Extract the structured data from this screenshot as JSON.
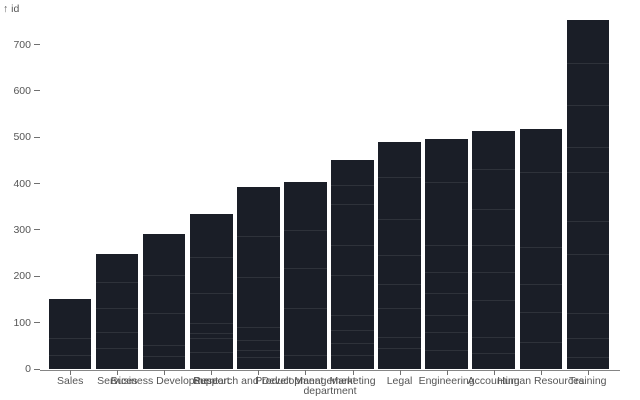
{
  "chart_data": {
    "type": "bar",
    "title": "",
    "xlabel": "department",
    "ylabel": "id",
    "y_axis_label_display": "↑ id",
    "categories": [
      "Sales",
      "Services",
      "Business Development",
      "Support",
      "Research and Development",
      "Product Management",
      "Marketing",
      "Legal",
      "Engineering",
      "Accounting",
      "Human Resources",
      "Training"
    ],
    "values": [
      150,
      248,
      292,
      335,
      392,
      403,
      450,
      489,
      496,
      514,
      518,
      753
    ],
    "ylim": [
      0,
      753
    ],
    "y_ticks": [
      0,
      100,
      200,
      300,
      400,
      500,
      600,
      700
    ],
    "grid": false,
    "legend": null,
    "stack_lines": [
      [
        66,
        30
      ],
      [
        188,
        131,
        80,
        45
      ],
      [
        202,
        120,
        52,
        27
      ],
      [
        242,
        165,
        100,
        77,
        66,
        37
      ],
      [
        288,
        199,
        90,
        62,
        40,
        25
      ],
      [
        299,
        217,
        131,
        30
      ],
      [
        396,
        356,
        267,
        202,
        116,
        84,
        55,
        30
      ],
      [
        414,
        324,
        245,
        184,
        131,
        70,
        45
      ],
      [
        403,
        267,
        209,
        163,
        116,
        80,
        41
      ],
      [
        432,
        346,
        267,
        209,
        148,
        70,
        34
      ],
      [
        424,
        263,
        184,
        123,
        59
      ],
      [
        661,
        570,
        478,
        424,
        320,
        249,
        120,
        66,
        26
      ]
    ],
    "colors": {
      "bar": "#1a1e27",
      "axis_text": "#555555",
      "tick_mark": "#707070",
      "domain_line": "#858585",
      "stack_line": "rgba(255,255,255,0.09)",
      "background": "#ffffff"
    }
  }
}
